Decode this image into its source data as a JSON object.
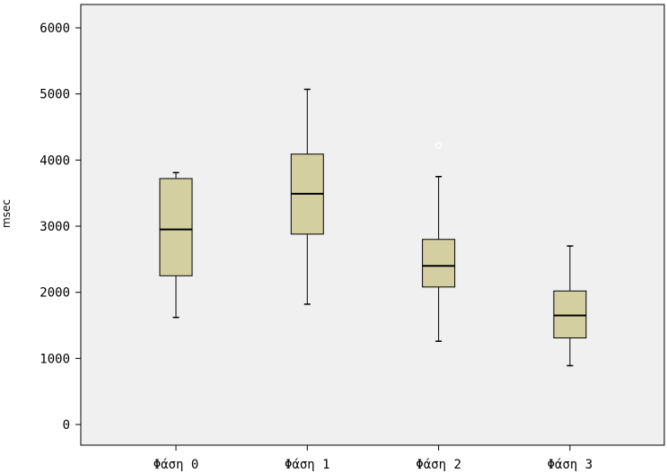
{
  "chart_data": {
    "type": "box",
    "ylabel": "msec",
    "xlabel": "",
    "ylim": [
      -300,
      6400
    ],
    "yticks": [
      0,
      1000,
      2000,
      3000,
      4000,
      5000,
      6000
    ],
    "grid": false,
    "categories": [
      "Φάση 0",
      "Φάση 1",
      "Φάση 2",
      "Φάση 3"
    ],
    "boxes": [
      {
        "category": "Φάση 0",
        "min": 1620,
        "q1": 2250,
        "median": 2950,
        "q3": 3720,
        "max": 3810,
        "outliers": []
      },
      {
        "category": "Φάση 1",
        "min": 1820,
        "q1": 2880,
        "median": 3490,
        "q3": 4090,
        "max": 5070,
        "outliers": []
      },
      {
        "category": "Φάση 2",
        "min": 1260,
        "q1": 2080,
        "median": 2400,
        "q3": 2800,
        "max": 3750,
        "outliers": [
          4220
        ]
      },
      {
        "category": "Φάση 3",
        "min": 890,
        "q1": 1310,
        "median": 1650,
        "q3": 2020,
        "max": 2700,
        "outliers": []
      }
    ],
    "colors": {
      "box_fill": "#d4cfa0",
      "plot_background": "#f0f0f0",
      "outlier_stroke": "#ffffff"
    }
  }
}
